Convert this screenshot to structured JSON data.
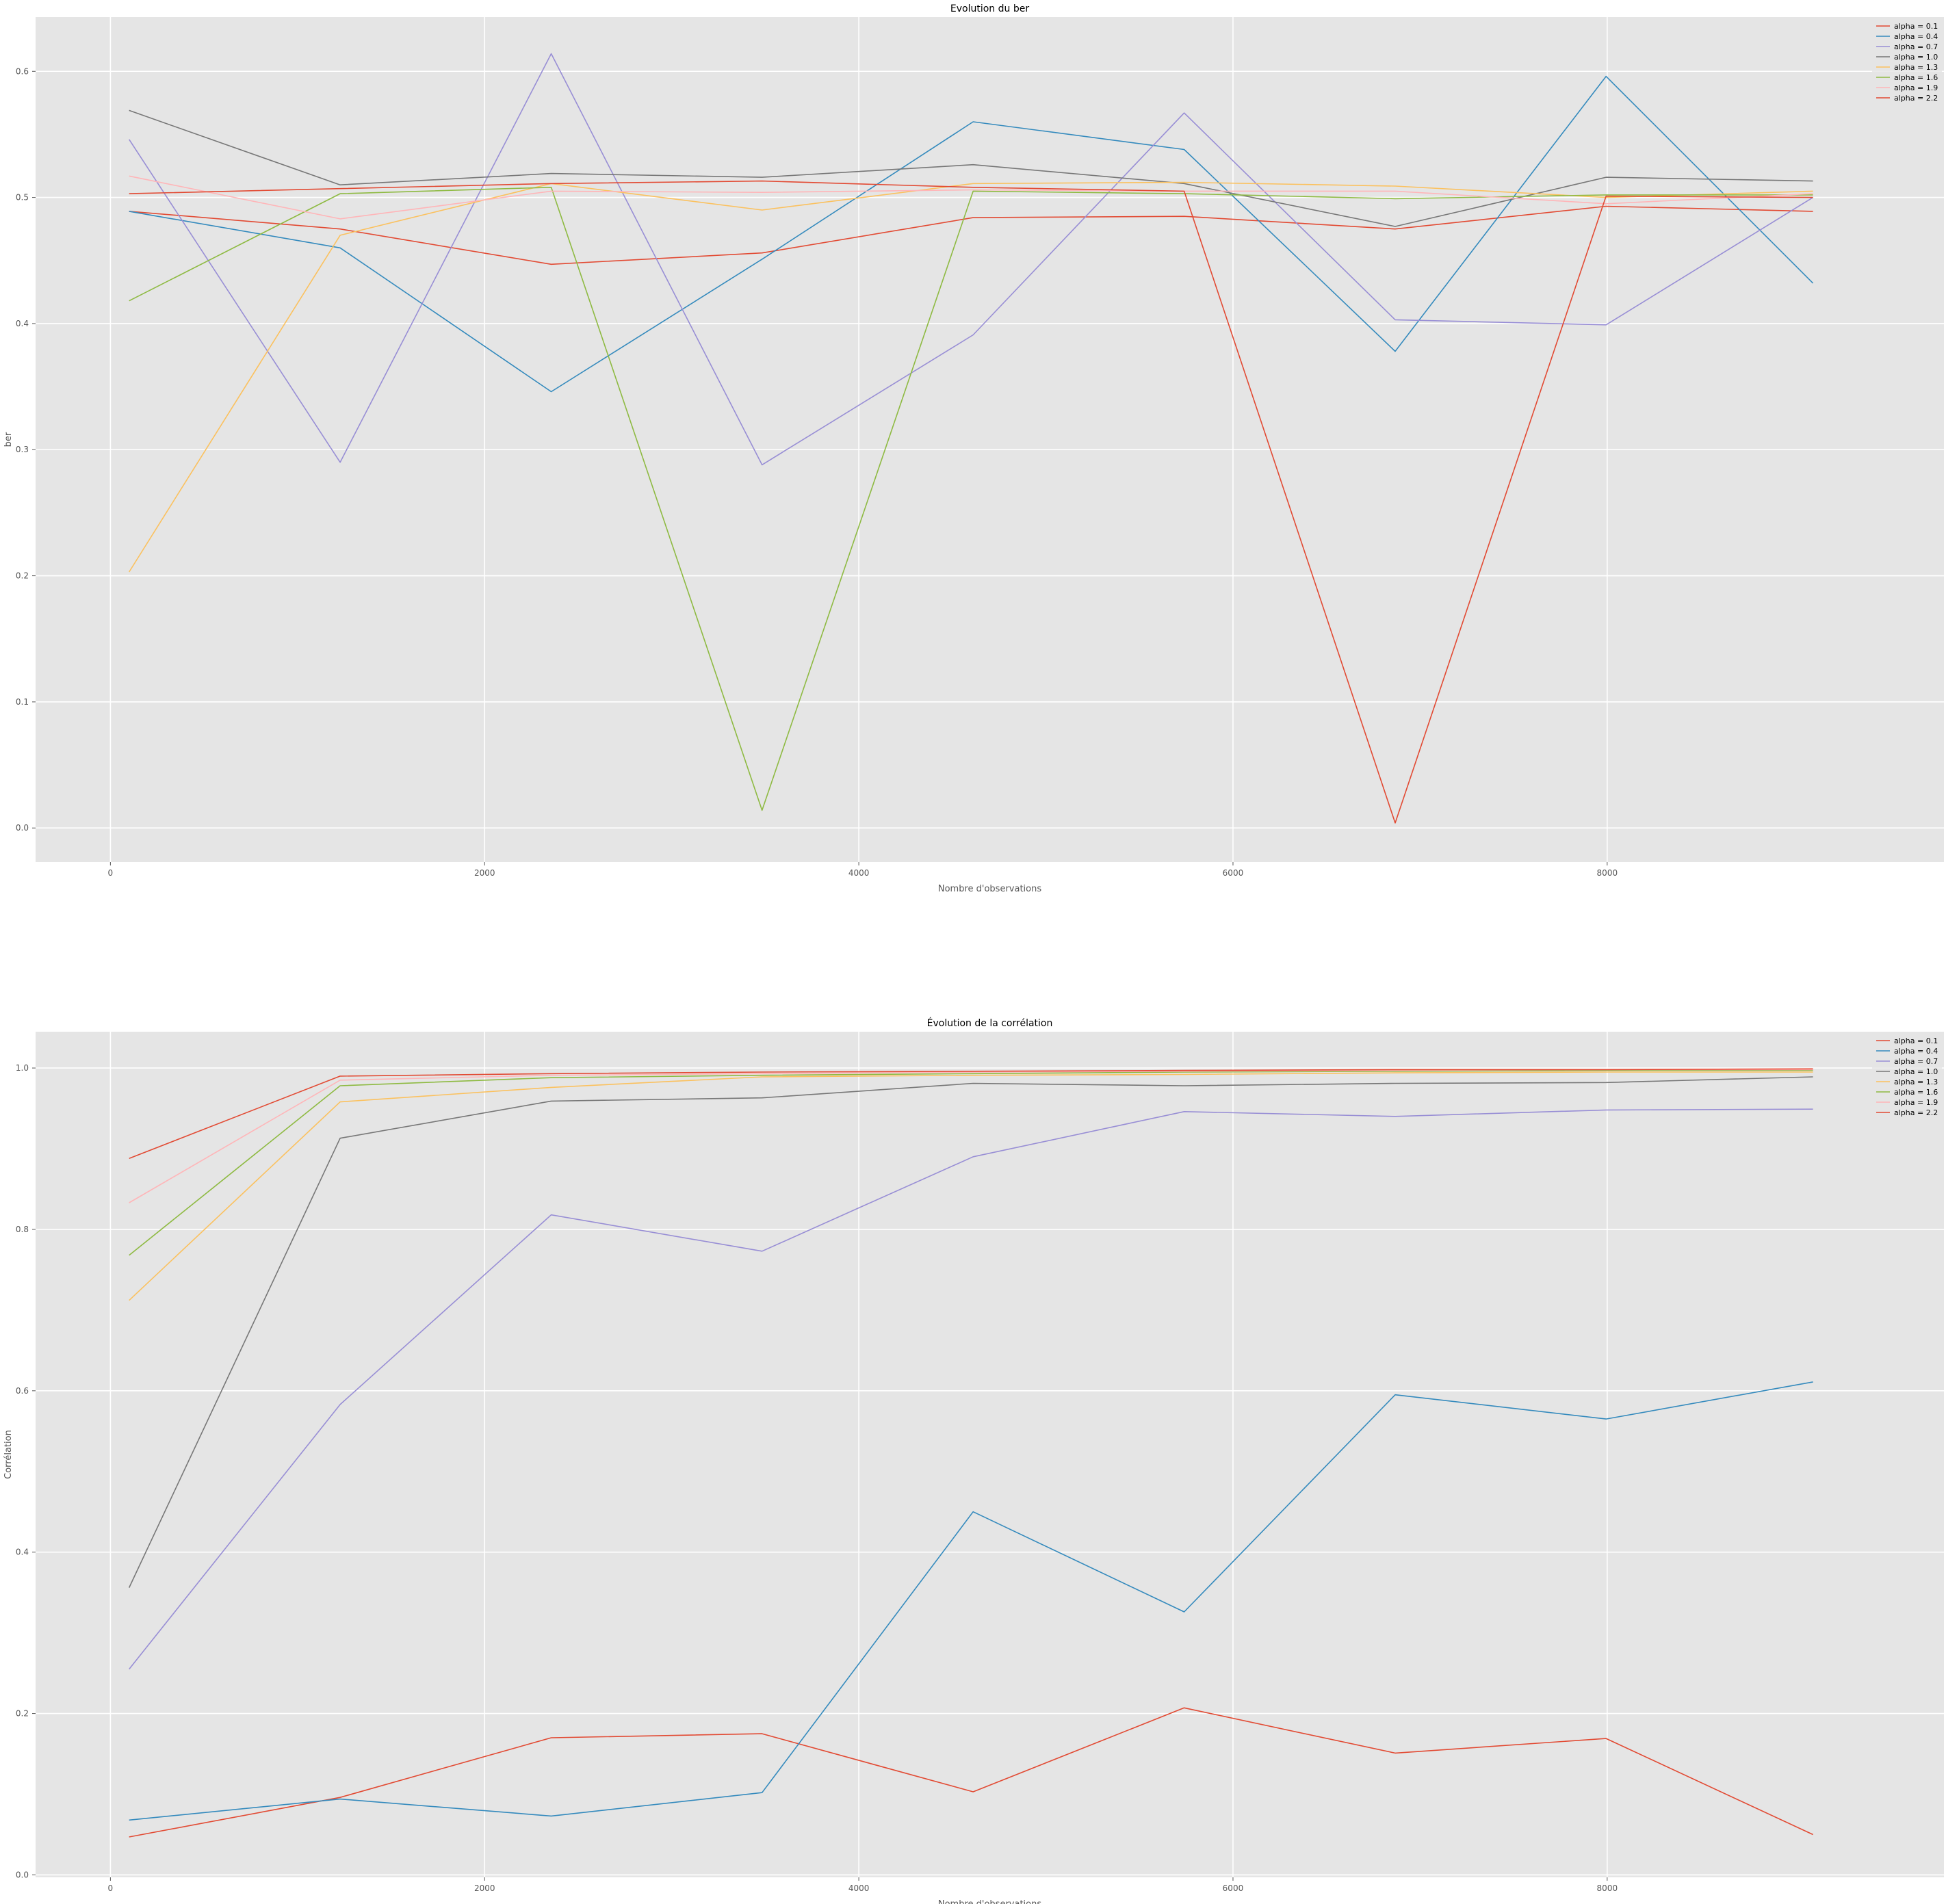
{
  "chart_data": [
    {
      "type": "line",
      "title": "Evolution du ber",
      "xlabel": "Nombre d'observations",
      "ylabel": "ber",
      "xlim": [
        -400,
        9800
      ],
      "ylim": [
        -0.027,
        0.643
      ],
      "xticks": [
        0,
        2000,
        4000,
        6000,
        8000
      ],
      "xtick_labels": [
        "0",
        "2000",
        "4000",
        "6000",
        "8000"
      ],
      "yticks": [
        0.0,
        0.1,
        0.2,
        0.3,
        0.4,
        0.5,
        0.6
      ],
      "ytick_labels": [
        "0.0",
        "0.1",
        "0.2",
        "0.3",
        "0.4",
        "0.5",
        "0.6"
      ],
      "grid": true,
      "legend_position": "top-right",
      "x": [
        100,
        1228,
        2356,
        3483,
        4611,
        5739,
        6867,
        7994,
        9100
      ],
      "series": [
        {
          "name": "alpha = 0.1",
          "color": "#E24A33",
          "values": [
            0.489,
            0.475,
            0.447,
            0.456,
            0.484,
            0.485,
            0.475,
            0.493,
            0.489
          ]
        },
        {
          "name": "alpha = 0.4",
          "color": "#348ABD",
          "values": [
            0.489,
            0.46,
            0.346,
            0.451,
            0.56,
            0.538,
            0.378,
            0.596,
            0.432
          ]
        },
        {
          "name": "alpha = 0.7",
          "color": "#988ED5",
          "values": [
            0.546,
            0.29,
            0.614,
            0.288,
            0.391,
            0.567,
            0.403,
            0.399,
            0.5
          ]
        },
        {
          "name": "alpha = 1.0",
          "color": "#777777",
          "values": [
            0.569,
            0.51,
            0.519,
            0.516,
            0.526,
            0.511,
            0.477,
            0.516,
            0.513
          ]
        },
        {
          "name": "alpha = 1.3",
          "color": "#FBC15E",
          "values": [
            0.203,
            0.47,
            0.511,
            0.49,
            0.511,
            0.512,
            0.509,
            0.5,
            0.505
          ]
        },
        {
          "name": "alpha = 1.6",
          "color": "#8EBA42",
          "values": [
            0.418,
            0.503,
            0.508,
            0.014,
            0.505,
            0.503,
            0.499,
            0.502,
            0.502
          ]
        },
        {
          "name": "alpha = 1.9",
          "color": "#FFB5B8",
          "values": [
            0.517,
            0.483,
            0.505,
            0.504,
            0.506,
            0.505,
            0.505,
            0.495,
            0.503
          ]
        },
        {
          "name": "alpha = 2.2",
          "color": "#E24A33",
          "values": [
            0.503,
            0.507,
            0.511,
            0.513,
            0.508,
            0.505,
            0.004,
            0.501,
            0.5
          ]
        }
      ]
    },
    {
      "type": "line",
      "title": "Évolution de la corrélation",
      "xlabel": "Nombre d'observations",
      "ylabel": "Corrélation",
      "xlim": [
        -400,
        9800
      ],
      "ylim": [
        -0.003,
        1.045
      ],
      "xticks": [
        0,
        2000,
        4000,
        6000,
        8000
      ],
      "xtick_labels": [
        "0",
        "2000",
        "4000",
        "6000",
        "8000"
      ],
      "yticks": [
        0.0,
        0.2,
        0.4,
        0.6,
        0.8,
        1.0
      ],
      "ytick_labels": [
        "0.0",
        "0.2",
        "0.4",
        "0.6",
        "0.8",
        "1.0"
      ],
      "grid": true,
      "legend_position": "top-right",
      "x": [
        100,
        1228,
        2356,
        3483,
        4611,
        5739,
        6867,
        7994,
        9100
      ],
      "series": [
        {
          "name": "alpha = 0.1",
          "color": "#E24A33",
          "values": [
            0.047,
            0.096,
            0.17,
            0.175,
            0.103,
            0.207,
            0.151,
            0.169,
            0.05
          ]
        },
        {
          "name": "alpha = 0.4",
          "color": "#348ABD",
          "values": [
            0.068,
            0.094,
            0.073,
            0.102,
            0.45,
            0.326,
            0.595,
            0.565,
            0.611
          ]
        },
        {
          "name": "alpha = 0.7",
          "color": "#988ED5",
          "values": [
            0.255,
            0.583,
            0.818,
            0.773,
            0.89,
            0.946,
            0.94,
            0.948,
            0.949
          ]
        },
        {
          "name": "alpha = 1.0",
          "color": "#777777",
          "values": [
            0.356,
            0.913,
            0.959,
            0.963,
            0.981,
            0.978,
            0.981,
            0.982,
            0.989
          ]
        },
        {
          "name": "alpha = 1.3",
          "color": "#FBC15E",
          "values": [
            0.712,
            0.958,
            0.976,
            0.989,
            0.991,
            0.992,
            0.994,
            0.995,
            0.995
          ]
        },
        {
          "name": "alpha = 1.6",
          "color": "#8EBA42",
          "values": [
            0.768,
            0.978,
            0.988,
            0.991,
            0.993,
            0.995,
            0.996,
            0.997,
            0.997
          ]
        },
        {
          "name": "alpha = 1.9",
          "color": "#FFB5B8",
          "values": [
            0.833,
            0.985,
            0.991,
            0.993,
            0.995,
            0.996,
            0.997,
            0.998,
            0.998
          ]
        },
        {
          "name": "alpha = 2.2",
          "color": "#E24A33",
          "values": [
            0.888,
            0.99,
            0.993,
            0.995,
            0.996,
            0.997,
            0.998,
            0.998,
            0.999
          ]
        }
      ]
    }
  ]
}
